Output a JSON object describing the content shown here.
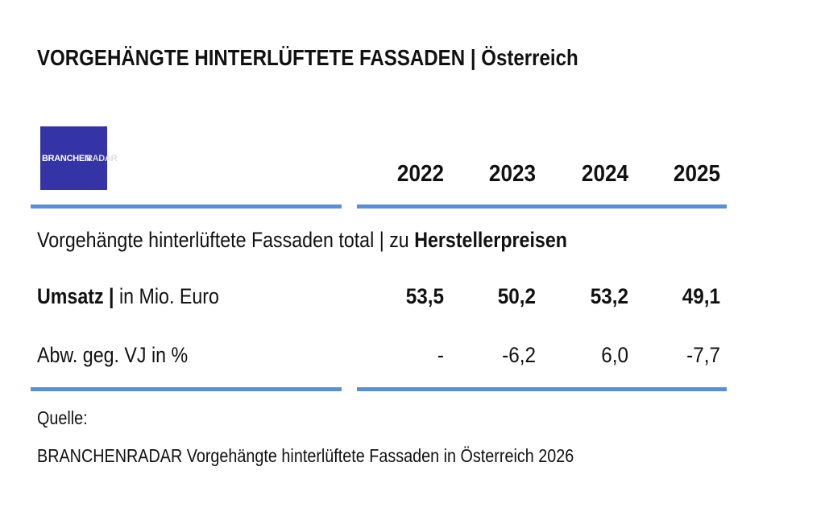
{
  "header": {
    "title_bold": "VORGEHÄNGTE HINTERLÜFTETE FASSADEN |",
    "title_rest": "Österreich"
  },
  "logo": {
    "part1": "BRANCHEN",
    "part2": "RADAR"
  },
  "table": {
    "columns": [
      "2022",
      "2023",
      "2024",
      "2025"
    ],
    "section": {
      "text": "Vorgehängte hinterlüftete Fassaden total | zu",
      "bold": "Herstellerpreisen"
    },
    "rows": [
      {
        "label_bold": "Umsatz |",
        "label": "in Mio. Euro",
        "values": [
          "53,5",
          "50,2",
          "53,2",
          "49,1"
        ]
      },
      {
        "label": "Abw. geg. VJ in %",
        "values": [
          "-",
          "-6,2",
          "6,0",
          "-7,7"
        ]
      }
    ]
  },
  "source": {
    "label": "Quelle:",
    "text": "BRANCHENRADAR Vorgehängte hinterlüftete Fassaden in Österreich 2026"
  }
}
